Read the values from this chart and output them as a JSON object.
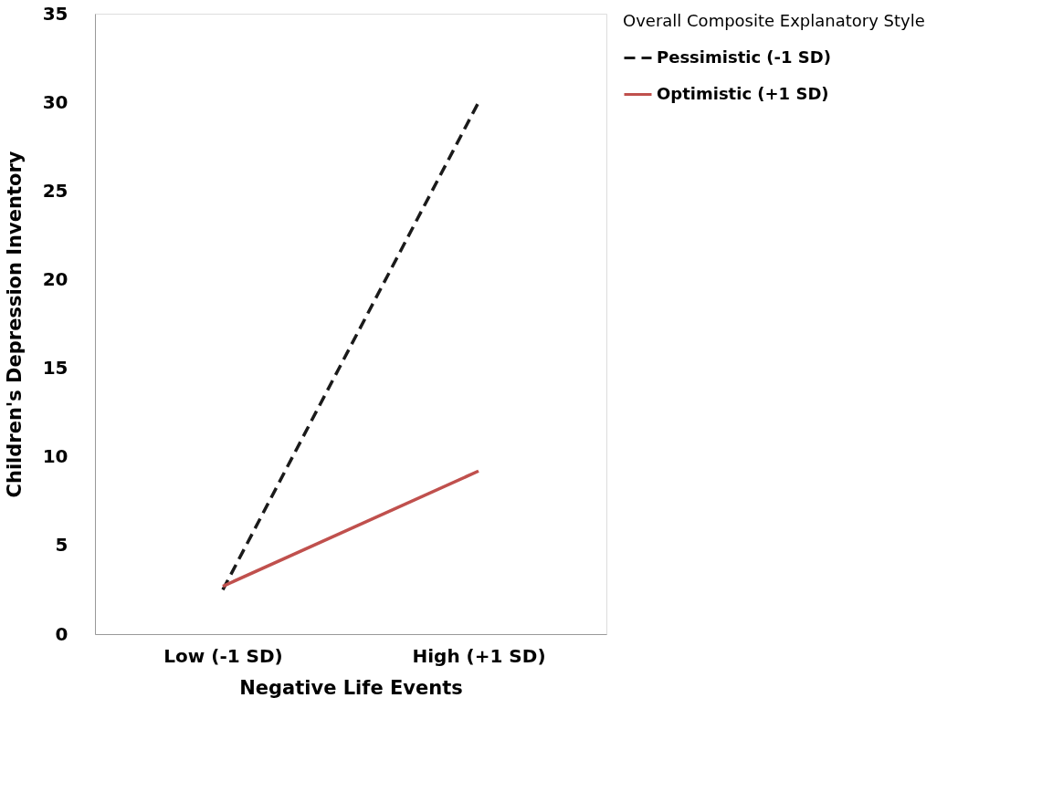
{
  "chart_data": {
    "type": "line",
    "xlabel": "Negative Life Events",
    "ylabel": "Children's Depression Inventory",
    "legend_title": "Overall Composite Explanatory Style",
    "categories": [
      "Low (-1 SD)",
      "High (+1 SD)"
    ],
    "series": [
      {
        "name": "Pessimistic  (-1 SD)",
        "color": "#1a1a1a",
        "line_style": "dashed",
        "values": [
          2.5,
          30
        ]
      },
      {
        "name": "Optimistic (+1 SD)",
        "color": "#c0504d",
        "line_style": "solid",
        "values": [
          2.7,
          9.2
        ]
      }
    ],
    "ylim": [
      0,
      35
    ],
    "yticks": [
      0,
      5,
      10,
      15,
      20,
      25,
      30,
      35
    ],
    "grid": false,
    "legend": "right",
    "marker": "none"
  }
}
